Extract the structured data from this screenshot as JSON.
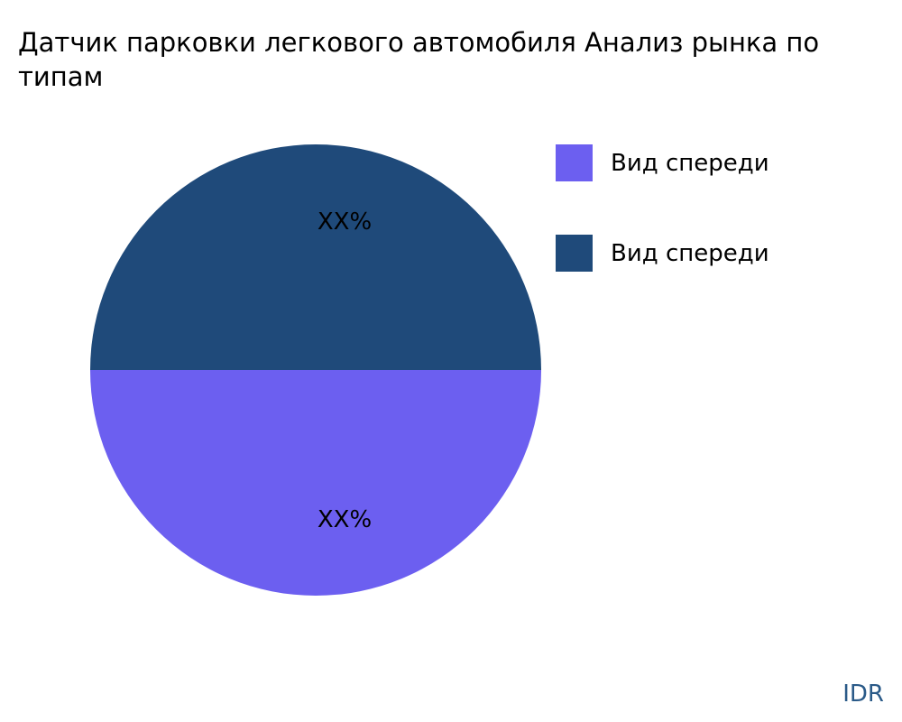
{
  "chart_data": {
    "type": "pie",
    "title_line1": "Датчик парковки легкового автомобиля Анализ рынка по",
    "title_line2": "типам",
    "slices": [
      {
        "label": "Вид спереди",
        "value": 50,
        "data_label": "XX%",
        "color": "#6c5ff0"
      },
      {
        "label": "Вид спереди",
        "value": 50,
        "data_label": "XX%",
        "color": "#1f4a7a"
      }
    ],
    "legend_placement": "top-right"
  },
  "brand": "IDR"
}
